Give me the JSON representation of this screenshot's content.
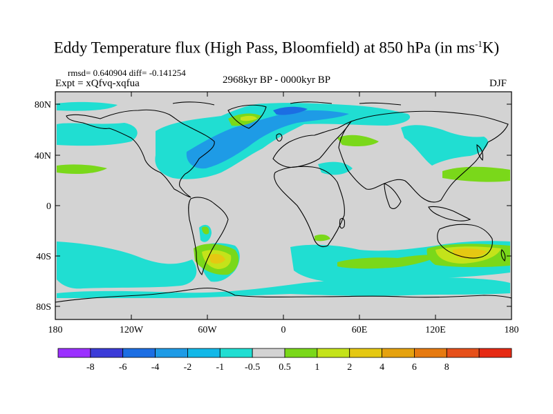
{
  "title": {
    "prefix": "Eddy Temperature flux (High Pass, Bloomfield) at 850 hPa (in ms",
    "superscript": "-1",
    "suffix": "K)"
  },
  "stats": "rmsd= 0.640904 diff= -0.141254",
  "expt": "Expt = xQfvq-xqfua",
  "period": "2968kyr BP - 0000kyr BP",
  "season": "DJF",
  "map": {
    "projection": "cylindrical-equidistant",
    "lon_range": [
      -180,
      180
    ],
    "lat_range": [
      -90,
      90
    ],
    "background_color": "#d3d3d3",
    "coastline_color": "#000000",
    "x_tick_labels": [
      "180",
      "120W",
      "60W",
      "0",
      "60E",
      "120E",
      "180"
    ],
    "y_tick_labels": [
      "80N",
      "40N",
      "0",
      "40S",
      "80S"
    ]
  },
  "colorbar": {
    "colors": [
      "#9b30ff",
      "#3b3bd8",
      "#1c6ee3",
      "#1e9be6",
      "#12b8e8",
      "#20ded2",
      "#d3d3d3",
      "#7ad81a",
      "#c4e31a",
      "#e5c812",
      "#e5a20f",
      "#e67a10",
      "#e6501a",
      "#e62a14"
    ],
    "labels": [
      "-8",
      "-6",
      "-4",
      "-2",
      "-1",
      "-0.5",
      "0.5",
      "1",
      "2",
      "4",
      "6",
      "8"
    ]
  }
}
